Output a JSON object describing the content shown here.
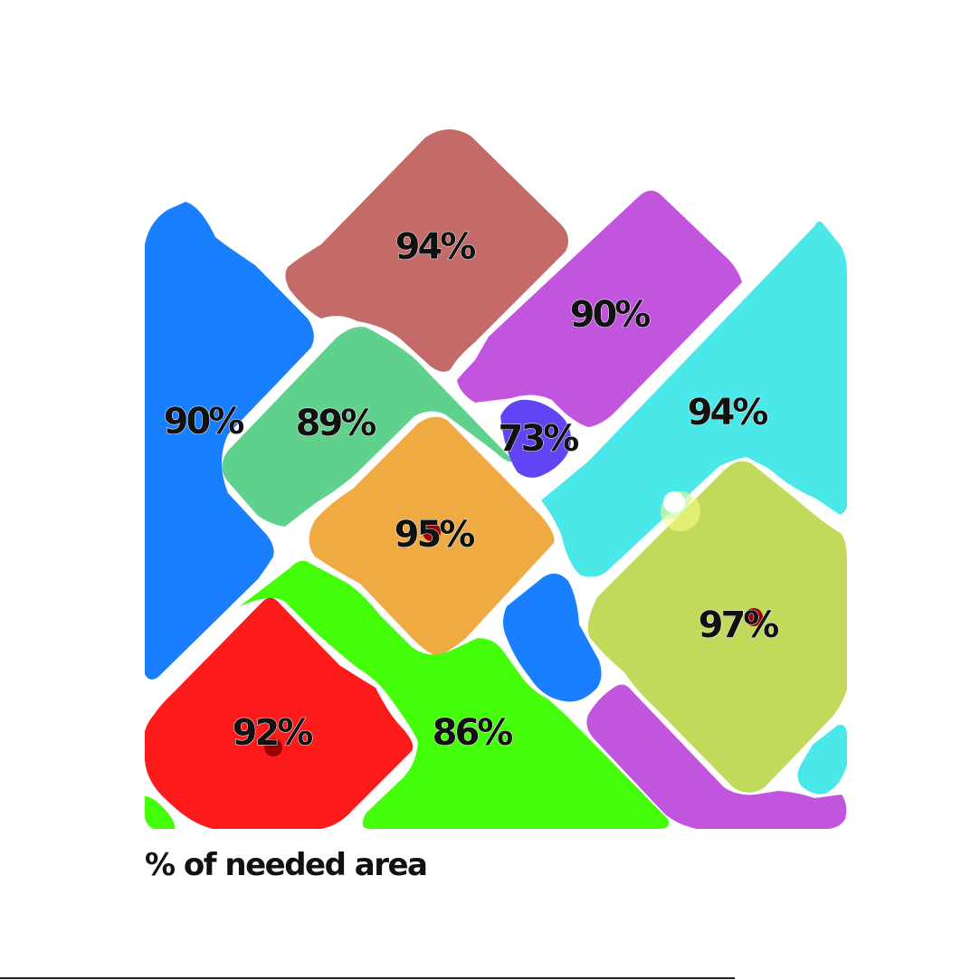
{
  "caption": "% of needed area",
  "regions": [
    {
      "id": "brown",
      "label": "94%",
      "percent": 94,
      "color": "#c46a69"
    },
    {
      "id": "purple-top",
      "label": "90%",
      "percent": 90,
      "color": "#c255dd"
    },
    {
      "id": "blue-left",
      "label": "90%",
      "percent": 90,
      "color": "#1a7ffe"
    },
    {
      "id": "teal-green",
      "label": "89%",
      "percent": 89,
      "color": "#60d08d"
    },
    {
      "id": "violet",
      "label": "73%",
      "percent": 73,
      "color": "#6144f3"
    },
    {
      "id": "cyan",
      "label": "94%",
      "percent": 94,
      "color": "#4ae8e9"
    },
    {
      "id": "orange",
      "label": "95%",
      "percent": 95,
      "color": "#f0aa42"
    },
    {
      "id": "olive",
      "label": "97%",
      "percent": 97,
      "color": "#c2da5b"
    },
    {
      "id": "red",
      "label": "92%",
      "percent": 92,
      "color": "#fe1b1b"
    },
    {
      "id": "green",
      "label": "86%",
      "percent": 86,
      "color": "#44fd09"
    }
  ],
  "marker_color": "#990000",
  "orb_colors": [
    "#4ae8e9",
    "#ffff88",
    "#ffffff"
  ]
}
